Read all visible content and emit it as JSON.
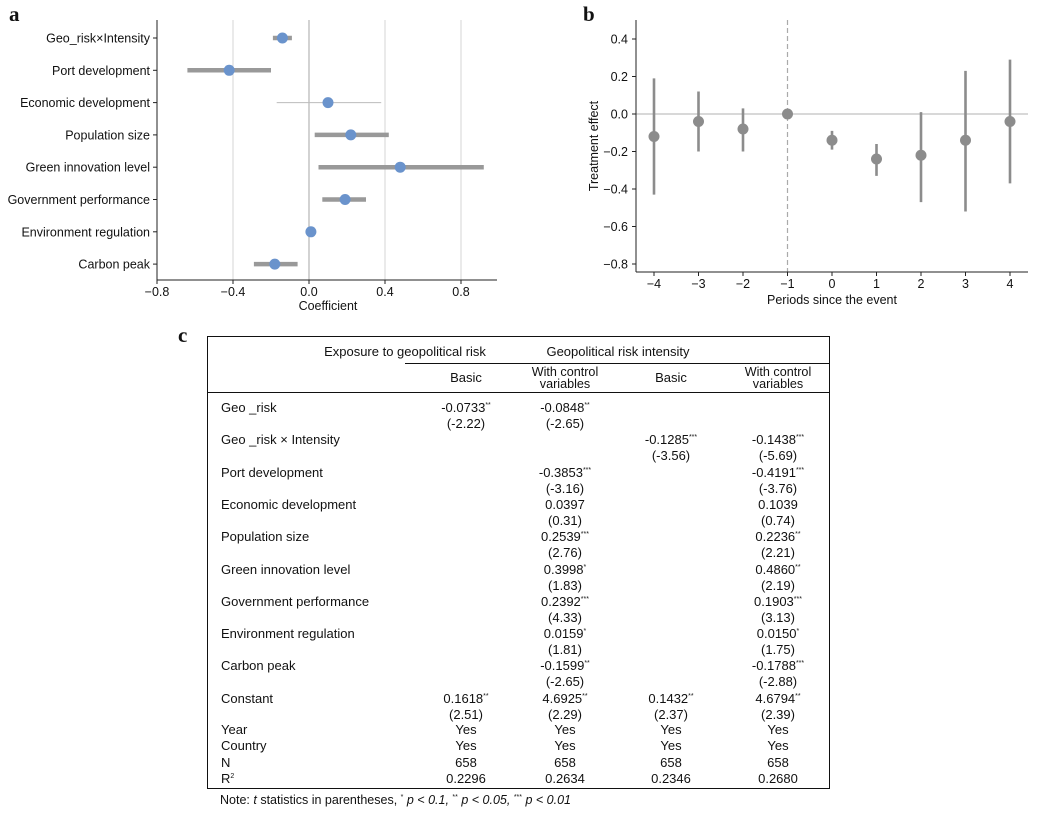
{
  "panels": {
    "a": "a",
    "b": "b",
    "c": "c"
  },
  "chart_data": [
    {
      "type": "scatter",
      "panel": "a",
      "orientation": "horizontal",
      "xlabel": "Coefficient",
      "ylabel": "",
      "xlim": [
        -0.8,
        1.0
      ],
      "xticks": [
        -0.8,
        -0.4,
        0.0,
        0.4,
        0.8
      ],
      "xtick_labels": [
        "−0.8",
        "−0.4",
        "0.0",
        "0.4",
        "0.8"
      ],
      "grid": "vertical",
      "categories": [
        "Geo_risk×Intensity",
        "Port development",
        "Economic development",
        "Population size",
        "Green innovation level",
        "Government performance",
        "Environment regulation",
        "Carbon peak"
      ],
      "values": [
        -0.14,
        -0.42,
        0.1,
        0.22,
        0.48,
        0.19,
        0.01,
        -0.18
      ],
      "ci_low": [
        -0.19,
        -0.64,
        -0.17,
        0.03,
        0.05,
        0.07,
        0.0,
        -0.29
      ],
      "ci_high": [
        -0.09,
        -0.2,
        0.38,
        0.42,
        0.92,
        0.3,
        0.03,
        -0.06
      ],
      "ci_thick": [
        true,
        true,
        false,
        true,
        true,
        true,
        true,
        true
      ],
      "colors": {
        "point": "#6a93cc",
        "bar": "#999999",
        "grid": "#d4d4d4",
        "zero": "#bbbbbb"
      }
    },
    {
      "type": "scatter",
      "panel": "b",
      "xlabel": "Periods since the event",
      "ylabel": "Treatment effect",
      "xlim": [
        -4.3,
        4.4
      ],
      "ylim": [
        -0.85,
        0.5
      ],
      "xticks": [
        -4,
        -3,
        -2,
        -1,
        0,
        1,
        2,
        3,
        4
      ],
      "xtick_labels": [
        "−4",
        "−3",
        "−2",
        "−1",
        "0",
        "1",
        "2",
        "3",
        "4"
      ],
      "yticks": [
        0.4,
        0.2,
        0.0,
        -0.2,
        -0.4,
        -0.6,
        -0.8
      ],
      "ytick_labels": [
        "0.4",
        "0.2",
        "0.0",
        "−0.2",
        "−0.4",
        "−0.6",
        "−0.8"
      ],
      "x": [
        -4,
        -3,
        -2,
        -1,
        0,
        1,
        2,
        3,
        4
      ],
      "y": [
        -0.12,
        -0.04,
        -0.08,
        0.0,
        -0.14,
        -0.24,
        -0.22,
        -0.14,
        -0.04
      ],
      "ci_low": [
        -0.43,
        -0.2,
        -0.2,
        0.0,
        -0.19,
        -0.33,
        -0.47,
        -0.52,
        -0.37
      ],
      "ci_high": [
        0.19,
        0.12,
        0.03,
        0.0,
        -0.09,
        -0.16,
        0.01,
        0.23,
        0.29
      ],
      "reference_lines": {
        "h": 0.0,
        "v": -1
      },
      "colors": {
        "point": "#8c8c8c",
        "bar": "#8c8c8c",
        "ref": "#c0c0c0"
      }
    }
  ],
  "table": {
    "group_headers": [
      "Exposure to geopolitical risk",
      "Geopolitical risk intensity"
    ],
    "col_headers": [
      [
        "Basic"
      ],
      [
        "With control",
        "variables"
      ],
      [
        "Basic"
      ],
      [
        "With control",
        "variables"
      ]
    ],
    "rows": [
      {
        "label": "Geo _risk",
        "cells": [
          [
            "-0.0733",
            "**",
            "(-2.22)"
          ],
          [
            "-0.0848",
            "**",
            "(-2.65)"
          ],
          [
            "",
            "",
            ""
          ],
          [
            "",
            "",
            ""
          ]
        ]
      },
      {
        "label": "Geo _risk × Intensity",
        "cells": [
          [
            "",
            "",
            ""
          ],
          [
            "",
            "",
            ""
          ],
          [
            "-0.1285",
            "***",
            "(-3.56)"
          ],
          [
            "-0.1438",
            "***",
            "(-5.69)"
          ]
        ]
      },
      {
        "label": "Port development",
        "cells": [
          [
            "",
            "",
            ""
          ],
          [
            "-0.3853",
            "***",
            "(-3.16)"
          ],
          [
            "",
            "",
            ""
          ],
          [
            "-0.4191",
            "***",
            "(-3.76)"
          ]
        ]
      },
      {
        "label": "Economic development",
        "cells": [
          [
            "",
            "",
            ""
          ],
          [
            "0.0397",
            "",
            "(0.31)"
          ],
          [
            "",
            "",
            ""
          ],
          [
            "0.1039",
            "",
            "(0.74)"
          ]
        ]
      },
      {
        "label": "Population size",
        "cells": [
          [
            "",
            "",
            ""
          ],
          [
            "0.2539",
            "***",
            "(2.76)"
          ],
          [
            "",
            "",
            ""
          ],
          [
            "0.2236",
            "**",
            "(2.21)"
          ]
        ]
      },
      {
        "label": "Green innovation level",
        "cells": [
          [
            "",
            "",
            ""
          ],
          [
            "0.3998",
            "*",
            "(1.83)"
          ],
          [
            "",
            "",
            ""
          ],
          [
            "0.4860",
            "**",
            "(2.19)"
          ]
        ]
      },
      {
        "label": "Government performance",
        "cells": [
          [
            "",
            "",
            ""
          ],
          [
            "0.2392",
            "***",
            "(4.33)"
          ],
          [
            "",
            "",
            ""
          ],
          [
            "0.1903",
            "***",
            "(3.13)"
          ]
        ]
      },
      {
        "label": "Environment regulation",
        "cells": [
          [
            "",
            "",
            ""
          ],
          [
            "0.0159",
            "*",
            "(1.81)"
          ],
          [
            "",
            "",
            ""
          ],
          [
            "0.0150",
            "*",
            "(1.75)"
          ]
        ]
      },
      {
        "label": "Carbon peak",
        "cells": [
          [
            "",
            "",
            ""
          ],
          [
            "-0.1599",
            "**",
            "(-2.65)"
          ],
          [
            "",
            "",
            ""
          ],
          [
            "-0.1788",
            "***",
            "(-2.88)"
          ]
        ]
      },
      {
        "label": "Constant",
        "cells": [
          [
            "0.1618",
            "**",
            "(2.51)"
          ],
          [
            "4.6925",
            "**",
            "(2.29)"
          ],
          [
            "0.1432",
            "**",
            "(2.37)"
          ],
          [
            "4.6794",
            "**",
            "(2.39)"
          ]
        ]
      }
    ],
    "simple_rows": [
      {
        "label": "Year",
        "cells": [
          "Yes",
          "Yes",
          "Yes",
          "Yes"
        ]
      },
      {
        "label": "Country",
        "cells": [
          "Yes",
          "Yes",
          "Yes",
          "Yes"
        ]
      },
      {
        "label": "N",
        "cells": [
          "658",
          "658",
          "658",
          "658"
        ]
      },
      {
        "label": "R",
        "label_sup": "2",
        "cells": [
          "0.2296",
          "0.2634",
          "0.2346",
          "0.2680"
        ]
      }
    ]
  },
  "note": {
    "prefix": "Note: ",
    "t": "t",
    "mid": " statistics in parentheses, ",
    "s1": "*",
    "p1": " p < 0.1, ",
    "s2": "**",
    "p2": " p < 0.05, ",
    "s3": "***",
    "p3": " p < 0.01"
  }
}
